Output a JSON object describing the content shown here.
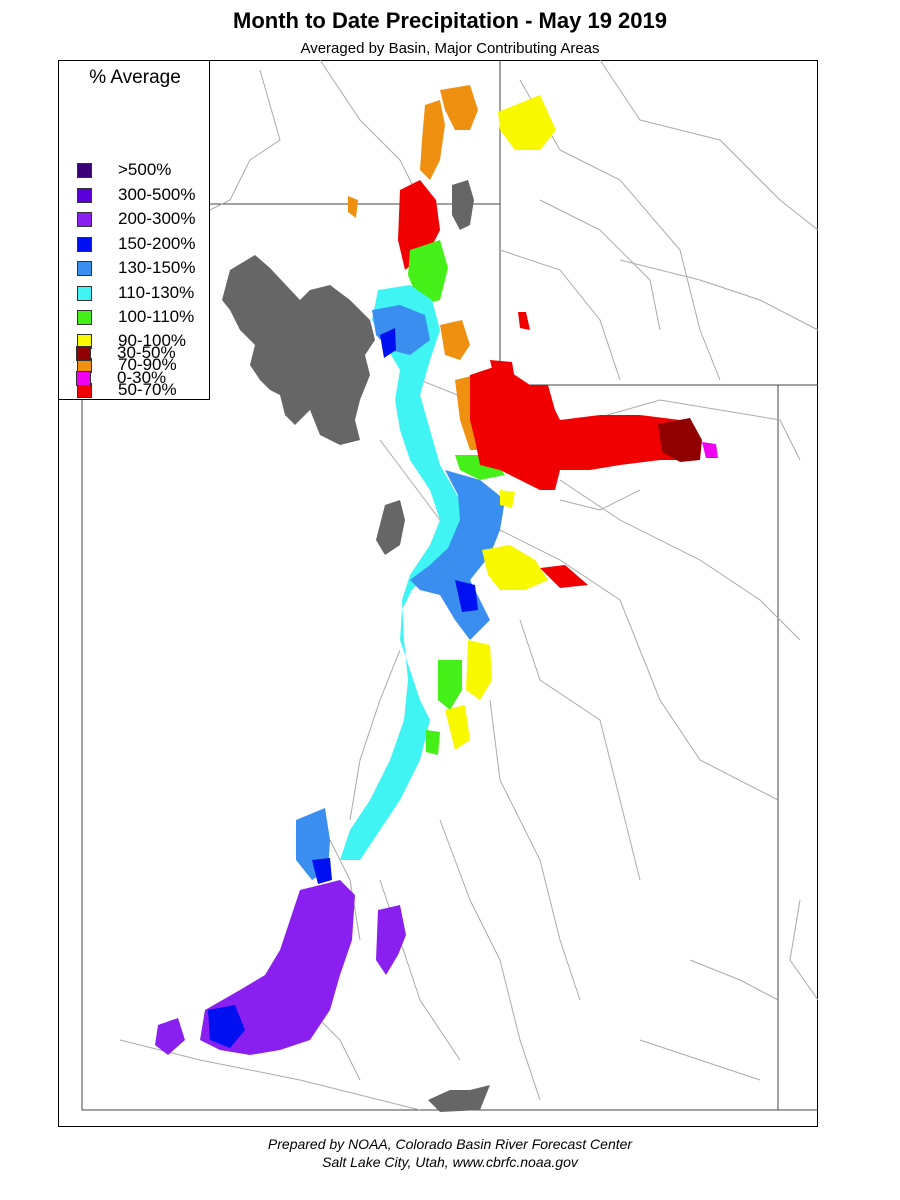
{
  "title": "Month to Date Precipitation - May 19 2019",
  "subtitle": "Averaged by Basin, Major Contributing Areas",
  "legend": {
    "title": "% Average",
    "items": [
      {
        "label": ">500%",
        "color": "#3a0078"
      },
      {
        "label": "300-500%",
        "color": "#5a00d8"
      },
      {
        "label": "200-300%",
        "color": "#8a20f0"
      },
      {
        "label": "150-200%",
        "color": "#0010f0"
      },
      {
        "label": "130-150%",
        "color": "#3a8ef0"
      },
      {
        "label": "110-130%",
        "color": "#40f4f4"
      },
      {
        "label": "100-110%",
        "color": "#44f018"
      },
      {
        "label": "90-100%",
        "color": "#f8f800"
      },
      {
        "label": "70-90%",
        "color": "#f09010"
      },
      {
        "label": "50-70%",
        "color": "#f00000"
      },
      {
        "label": "30-50%",
        "color": "#900000"
      },
      {
        "label": "0-30%",
        "color": "#f000f0"
      }
    ]
  },
  "colors": {
    "lake": "#666666",
    "boundary": "#aaaaaa",
    "border": "#444444"
  },
  "footer": {
    "line1": "Prepared by NOAA, Colorado Basin River Forecast Center",
    "line2": "Salt Lake City, Utah, www.cbrfc.noaa.gov"
  }
}
